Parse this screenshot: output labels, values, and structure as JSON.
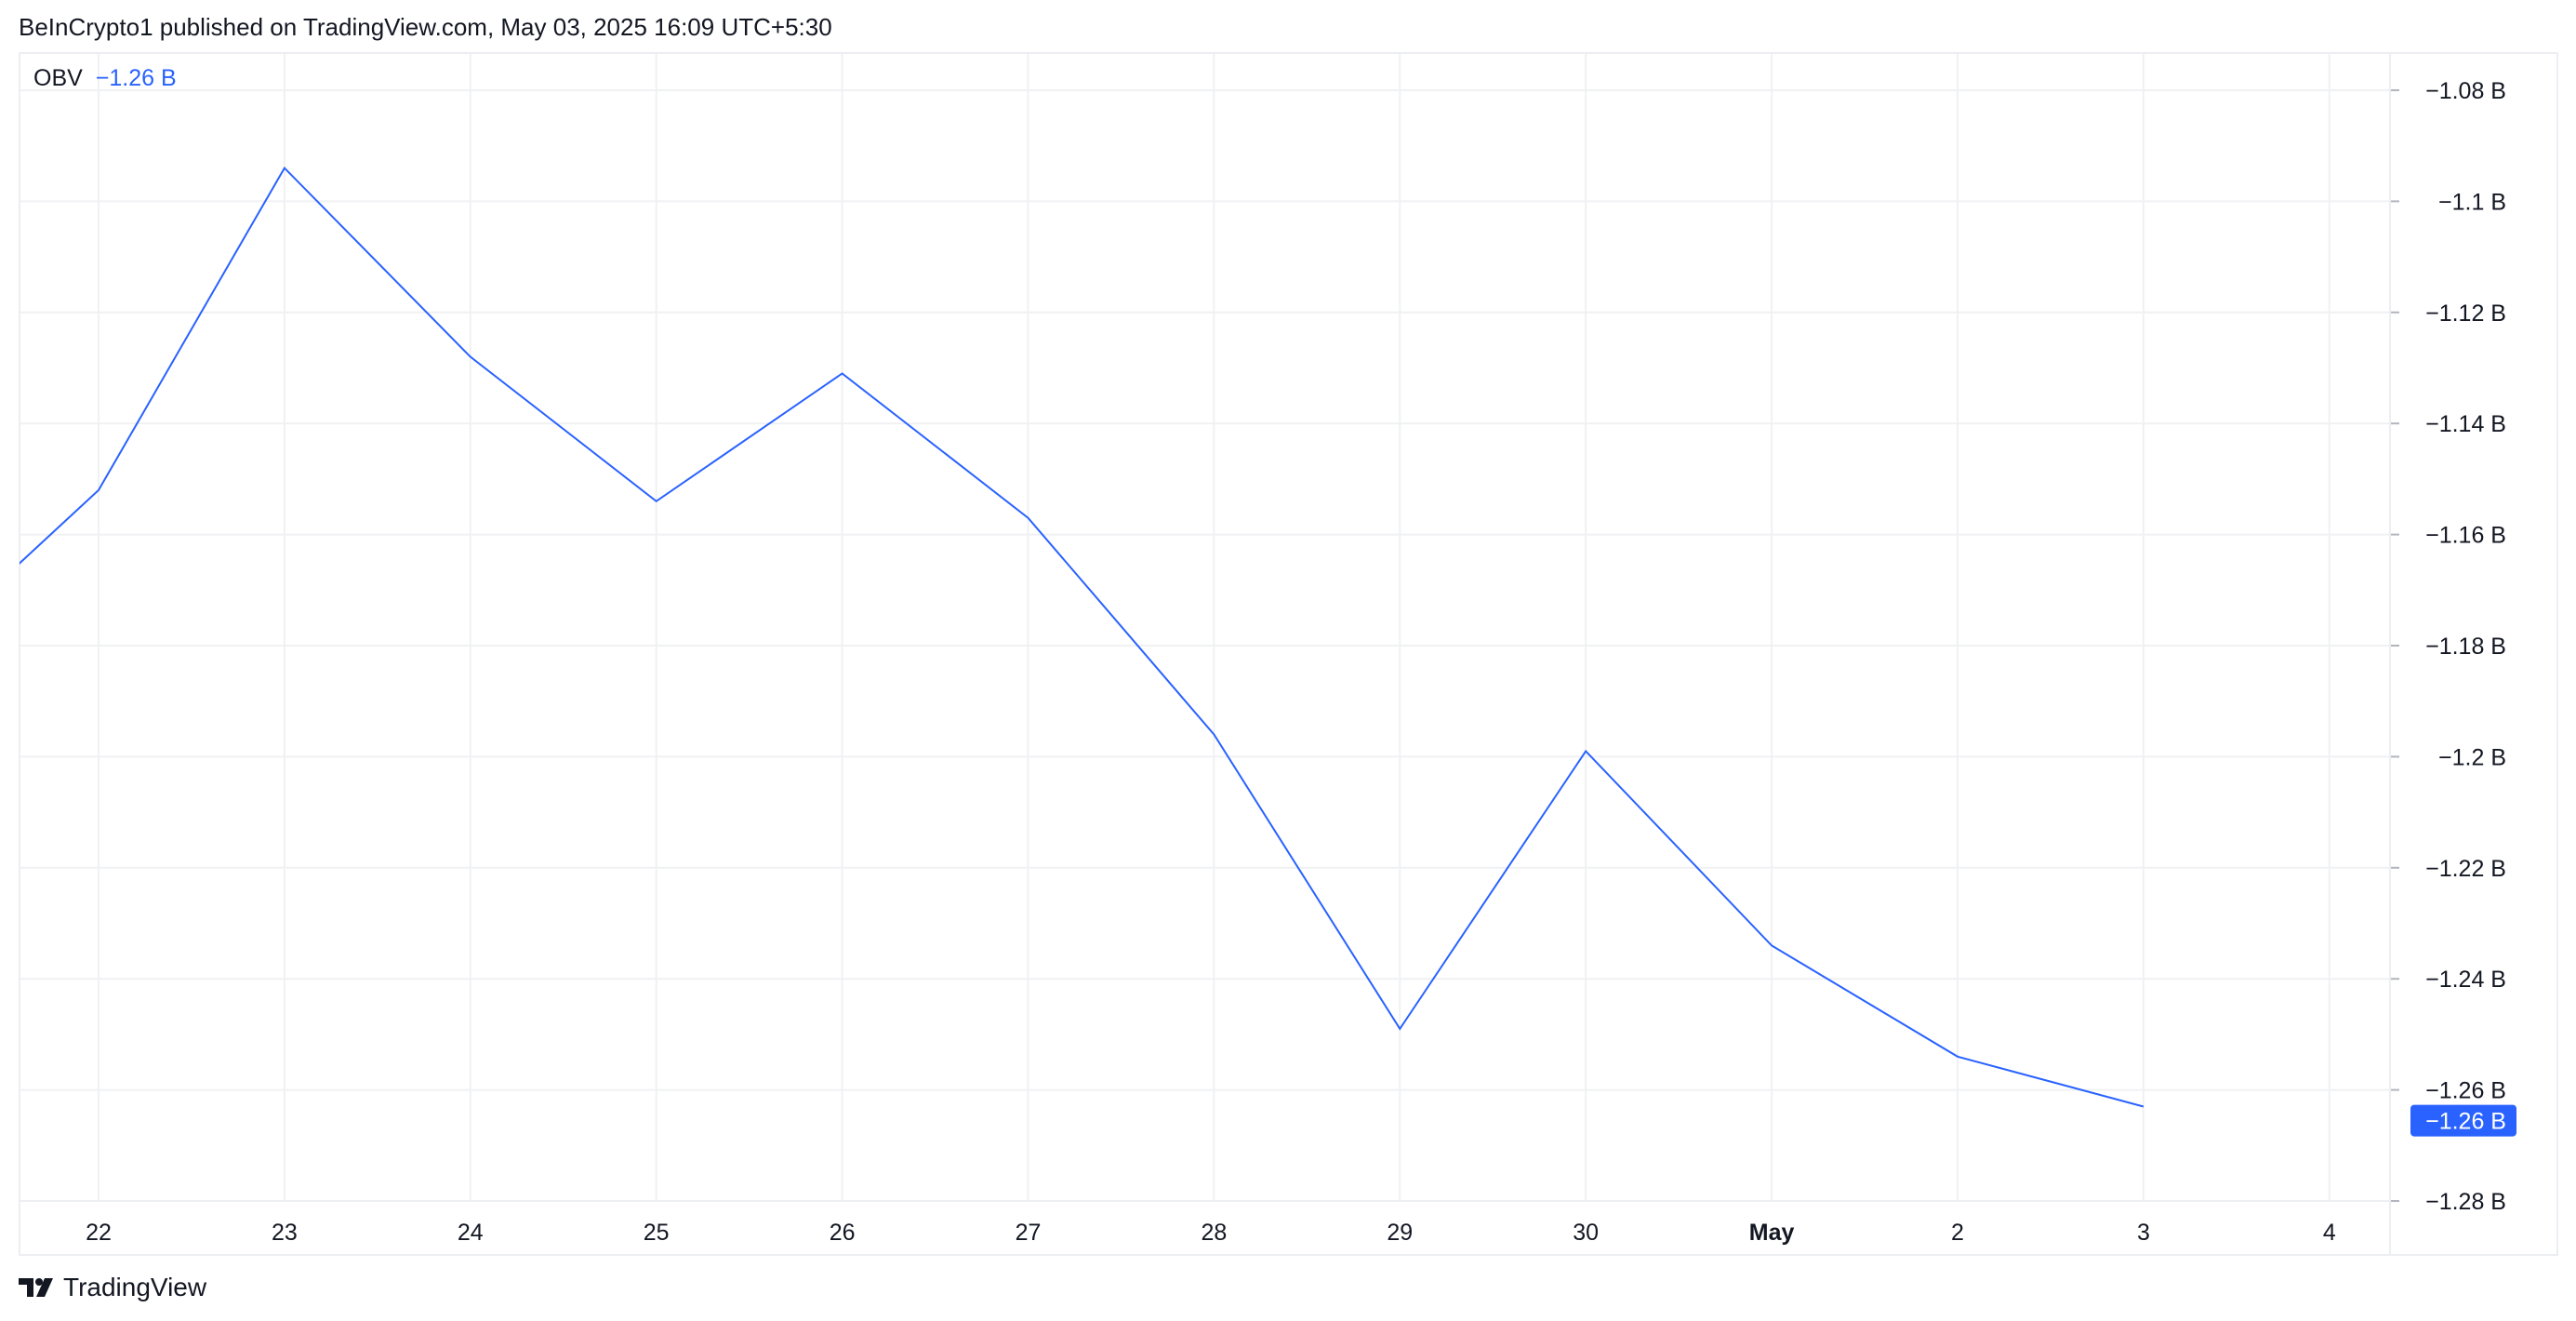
{
  "header": {
    "published": "BeInCrypto1 published on TradingView.com, May 03, 2025 16:09 UTC+5:30"
  },
  "legend": {
    "name": "OBV",
    "value": "−1.26 B"
  },
  "brand": {
    "name": "TradingView"
  },
  "colors": {
    "line": "#2962ff",
    "grid": "#f0f1f3",
    "text": "#131722"
  },
  "chart_data": {
    "type": "line",
    "title": "",
    "xlabel": "",
    "ylabel": "",
    "x_ticks": [
      "22",
      "23",
      "24",
      "25",
      "26",
      "27",
      "28",
      "29",
      "30",
      "May",
      "2",
      "3",
      "4"
    ],
    "y_ticks": [
      "−1.08 B",
      "−1.1 B",
      "−1.12 B",
      "−1.14 B",
      "−1.16 B",
      "−1.18 B",
      "−1.2 B",
      "−1.22 B",
      "−1.24 B",
      "−1.26 B",
      "−1.28 B"
    ],
    "y_tick_values": [
      -1.08,
      -1.1,
      -1.12,
      -1.14,
      -1.16,
      -1.18,
      -1.2,
      -1.22,
      -1.24,
      -1.26,
      -1.28
    ],
    "ylim": [
      -1.28,
      -1.08
    ],
    "grid": true,
    "series": [
      {
        "name": "OBV",
        "x": [
          "Apr 21",
          "Apr 22",
          "Apr 23",
          "Apr 24",
          "Apr 25",
          "Apr 26",
          "Apr 27",
          "Apr 28",
          "Apr 29",
          "Apr 30",
          "May 1",
          "May 2",
          "May 3"
        ],
        "values": [
          -1.183,
          -1.152,
          -1.094,
          -1.128,
          -1.154,
          -1.131,
          -1.157,
          -1.196,
          -1.249,
          -1.199,
          -1.234,
          -1.254,
          -1.263
        ]
      }
    ],
    "last_value_label": "−1.26 B"
  }
}
